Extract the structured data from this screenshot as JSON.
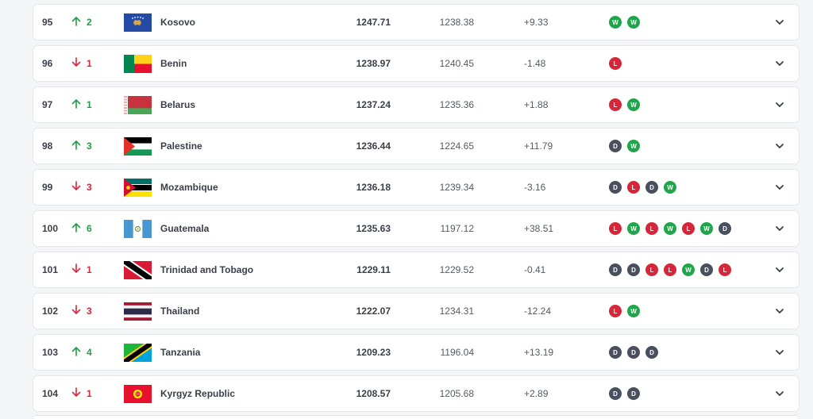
{
  "rows": [
    {
      "rank": "95",
      "dir": "up",
      "move": "2",
      "flag": "kosovo-flag",
      "name": "Kosovo",
      "points": "1247.71",
      "previous": "1238.38",
      "diff": "+9.33",
      "form": [
        "W",
        "W"
      ]
    },
    {
      "rank": "96",
      "dir": "down",
      "move": "1",
      "flag": "benin-flag",
      "name": "Benin",
      "points": "1238.97",
      "previous": "1240.45",
      "diff": "-1.48",
      "form": [
        "L"
      ]
    },
    {
      "rank": "97",
      "dir": "up",
      "move": "1",
      "flag": "belarus-flag",
      "name": "Belarus",
      "points": "1237.24",
      "previous": "1235.36",
      "diff": "+1.88",
      "form": [
        "L",
        "W"
      ]
    },
    {
      "rank": "98",
      "dir": "up",
      "move": "3",
      "flag": "palestine-flag",
      "name": "Palestine",
      "points": "1236.44",
      "previous": "1224.65",
      "diff": "+11.79",
      "form": [
        "D",
        "W"
      ]
    },
    {
      "rank": "99",
      "dir": "down",
      "move": "3",
      "flag": "mozambique-flag",
      "name": "Mozambique",
      "points": "1236.18",
      "previous": "1239.34",
      "diff": "-3.16",
      "form": [
        "D",
        "L",
        "D",
        "W"
      ]
    },
    {
      "rank": "100",
      "dir": "up",
      "move": "6",
      "flag": "guatemala-flag",
      "name": "Guatemala",
      "points": "1235.63",
      "previous": "1197.12",
      "diff": "+38.51",
      "form": [
        "L",
        "W",
        "L",
        "W",
        "L",
        "W",
        "D"
      ]
    },
    {
      "rank": "101",
      "dir": "down",
      "move": "1",
      "flag": "trinidad-and-tobago-flag",
      "name": "Trinidad and Tobago",
      "points": "1229.11",
      "previous": "1229.52",
      "diff": "-0.41",
      "form": [
        "D",
        "D",
        "L",
        "L",
        "W",
        "D",
        "L"
      ]
    },
    {
      "rank": "102",
      "dir": "down",
      "move": "3",
      "flag": "thailand-flag",
      "name": "Thailand",
      "points": "1222.07",
      "previous": "1234.31",
      "diff": "-12.24",
      "form": [
        "L",
        "W"
      ]
    },
    {
      "rank": "103",
      "dir": "up",
      "move": "4",
      "flag": "tanzania-flag",
      "name": "Tanzania",
      "points": "1209.23",
      "previous": "1196.04",
      "diff": "+13.19",
      "form": [
        "D",
        "D",
        "D"
      ]
    },
    {
      "rank": "104",
      "dir": "down",
      "move": "1",
      "flag": "kyrgyz-republic-flag",
      "name": "Kyrgyz Republic",
      "points": "1208.57",
      "previous": "1205.68",
      "diff": "+2.89",
      "form": [
        "D",
        "D"
      ]
    }
  ],
  "colors": {
    "up": "#1f9d47",
    "down": "#d6263a",
    "win": "#1fa54a",
    "loss": "#d6263a",
    "draw": "#4a4f5f"
  }
}
